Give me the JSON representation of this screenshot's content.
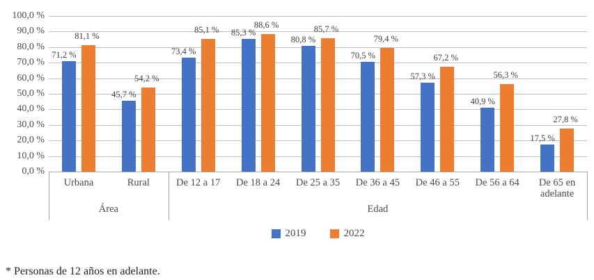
{
  "chart_data": {
    "type": "bar",
    "title": "",
    "categories": [
      "Urbana",
      "Rural",
      "De 12 a 17",
      "De 18 a 24",
      "De 25 a 35",
      "De 36 a 45",
      "De 46 a 55",
      "De 56 a 64",
      "De 65 en adelante"
    ],
    "groups": [
      {
        "label": "Área",
        "start": 0,
        "span": 2
      },
      {
        "label": "Edad",
        "start": 2,
        "span": 7
      }
    ],
    "series": [
      {
        "name": "2019",
        "color": "#4472C4",
        "values": [
          71.2,
          45.7,
          73.4,
          85.3,
          80.8,
          70.5,
          57.3,
          40.9,
          17.5
        ],
        "display_labels": [
          "71,2 %",
          "45,7 %",
          "73,4 %",
          "85,3 %",
          "80,8 %",
          "70,5 %",
          "57,3 %",
          "40,9 %",
          "17,5 %"
        ]
      },
      {
        "name": "2022",
        "color": "#ED7D31",
        "values": [
          81.1,
          54.2,
          85.1,
          88.6,
          85.7,
          79.4,
          67.2,
          56.3,
          27.8
        ],
        "display_labels": [
          "81,1 %",
          "54,2 %",
          "85,1 %",
          "88,6 %",
          "85,7 %",
          "79,4 %",
          "67,2 %",
          "56,3 %",
          "27,8 %"
        ]
      }
    ],
    "y_ticks": [
      "100,0 %",
      "90,0 %",
      "80,0 %",
      "70,0 %",
      "60,0 %",
      "50,0 %",
      "40,0 %",
      "30,0 %",
      "20,0 %",
      "10,0 %",
      "0,0 %"
    ],
    "ylim": [
      0,
      100
    ],
    "grid": true,
    "legend_position": "bottom",
    "legend": [
      "2019",
      "2022"
    ]
  },
  "footnote": "* Personas de 12 años en adelante."
}
